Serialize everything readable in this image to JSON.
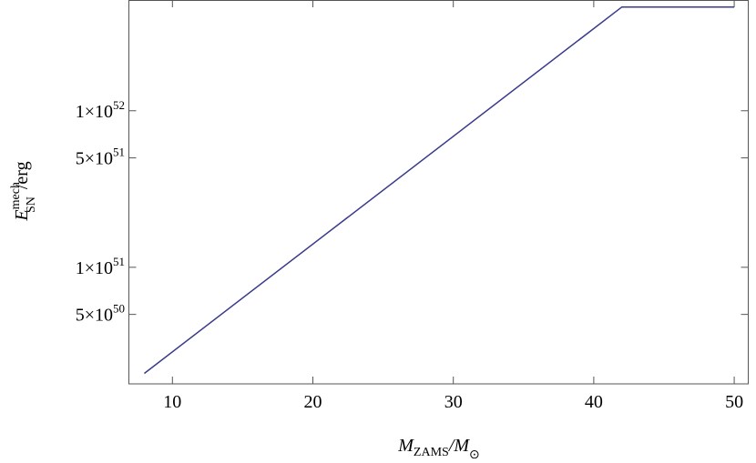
{
  "chart_data": {
    "type": "line",
    "x_label": {
      "main": "M",
      "sub": "ZAMS",
      "rest": "/M",
      "sub2": "⊙"
    },
    "y_label": {
      "main": "E",
      "sup": "mech",
      "sub": "SN",
      "rest": "/erg"
    },
    "series": [
      {
        "color": "#3a3a8c",
        "x": [
          8,
          42,
          50
        ],
        "values": [
          2.1e+50,
          4.6e+52,
          4.6e+52
        ]
      }
    ],
    "xlim": [
      6.9,
      51
    ],
    "xticks": [
      10,
      20,
      30,
      40,
      50
    ],
    "ylim": [
      1.8e+50,
      5.1e+52
    ],
    "log_y": true,
    "yticks": [
      {
        "value": 5e+50,
        "label": "5×10",
        "exponent": "50"
      },
      {
        "value": 1e+51,
        "label": "1×10",
        "exponent": "51"
      },
      {
        "value": 5e+51,
        "label": "5×10",
        "exponent": "51"
      },
      {
        "value": 1e+52,
        "label": "1×10",
        "exponent": "52"
      }
    ]
  }
}
